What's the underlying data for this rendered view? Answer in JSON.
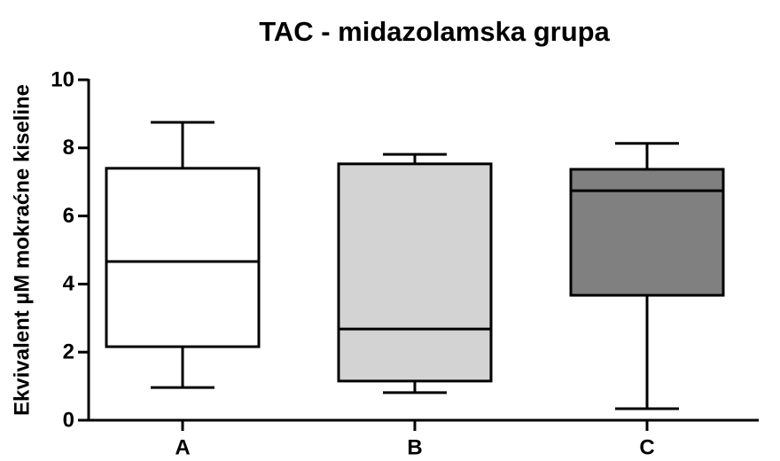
{
  "chart_data": {
    "type": "box",
    "title": "TAC - midazolamska grupa",
    "y_label": "Ekvivalent µM mokraćne kiseline",
    "categories": [
      "A",
      "B",
      "C"
    ],
    "boxes": [
      {
        "min": 0.96,
        "q1": 2.16,
        "median": 4.66,
        "q3": 7.4,
        "max": 8.75,
        "color": "#ffffff"
      },
      {
        "min": 0.81,
        "q1": 1.15,
        "median": 2.68,
        "q3": 7.53,
        "max": 7.81,
        "color": "#d3d3d3"
      },
      {
        "min": 0.34,
        "q1": 3.67,
        "median": 6.74,
        "q3": 7.37,
        "max": 8.13,
        "color": "#808080"
      }
    ],
    "ylim": [
      0,
      10
    ],
    "yticks": [
      0,
      2,
      4,
      6,
      8,
      10
    ],
    "grid": false
  }
}
